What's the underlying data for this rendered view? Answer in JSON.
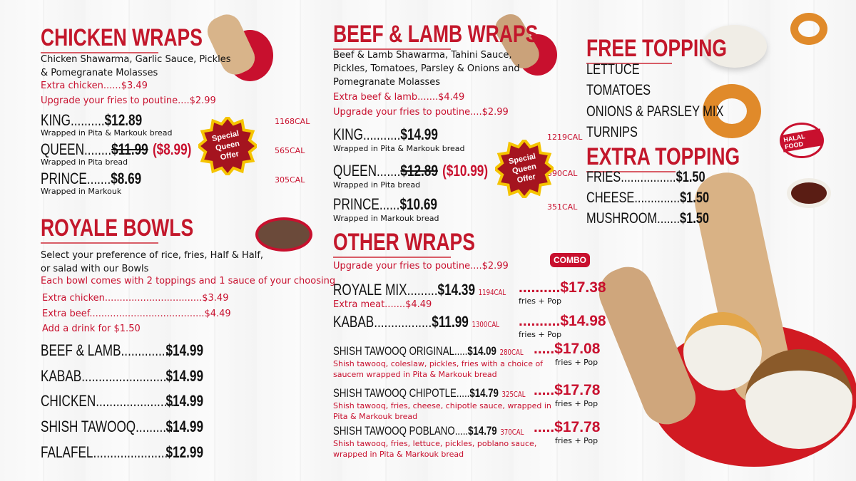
{
  "colors": {
    "accent": "#c3172b",
    "text": "#111111",
    "badge": "#a5141f",
    "badge_border": "#f5c400"
  },
  "chicken": {
    "title": "CHICKEN WRAPS",
    "desc": [
      "Chicken Shawarma, Garlic Sauce, Pickles",
      "& Pomegranate Molasses"
    ],
    "extra": "Extra chicken......$3.49",
    "upgrade": "Upgrade your fries to poutine....$2.99",
    "items": [
      {
        "name": "KING..........",
        "price": "$12.89",
        "sub": "Wrapped in Pita & Markouk bread",
        "cal": "1168CAL"
      },
      {
        "name": "QUEEN........",
        "price": "$11.99",
        "sale": "($8.99)",
        "sub": "Wrapped in Pita bread",
        "cal": "565CAL"
      },
      {
        "name": "PRINCE.......",
        "price": "$8.69",
        "sub": "Wrapped in Markouk",
        "cal": "305CAL"
      }
    ],
    "badge": "Special Queen Offer"
  },
  "bowls": {
    "title": "ROYALE BOWLS",
    "desc": [
      "Select your preference of rice, fries, Half & Half,",
      "or salad with our Bowls"
    ],
    "note": "Each bowl comes with 2 toppings and 1 sauce of your choosing",
    "extras": [
      "Extra chicken.................................$3.49",
      "Extra beef.......................................$4.49",
      "Add a drink for $1.50"
    ],
    "items": [
      {
        "name": "BEEF & LAMB...............",
        "price": "$14.99"
      },
      {
        "name": "KABAB.........................",
        "price": "$14.99"
      },
      {
        "name": "CHICKEN.......................",
        "price": "$14.99"
      },
      {
        "name": "SHISH TAWOOQ............",
        "price": "$14.99"
      },
      {
        "name": "FALAFEL.......................",
        "price": "$12.99"
      }
    ]
  },
  "beef": {
    "title": "BEEF & LAMB WRAPS",
    "desc": [
      "Beef & Lamb Shawarma, Tahini Sauce,",
      "Pickles, Tomatoes, Parsley & Onions and",
      "Pomegranate Molasses"
    ],
    "extra": "Extra beef & lamb.......$4.49",
    "upgrade": "Upgrade your fries to poutine....$2.99",
    "items": [
      {
        "name": "KING...........",
        "price": "$14.99",
        "sub": "Wrapped in Pita & Markouk bread",
        "cal": "1219CAL"
      },
      {
        "name": "QUEEN.......",
        "price": "$12.89",
        "sale": "($10.99)",
        "sub": "Wrapped in Pita bread",
        "cal": "590CAL"
      },
      {
        "name": "PRINCE......",
        "price": "$10.69",
        "sub": "Wrapped in Markouk bread",
        "cal": "351CAL"
      }
    ],
    "badge": "Special Queen Offer"
  },
  "other": {
    "title": "OTHER WRAPS",
    "upgrade": "Upgrade your fries to poutine....$2.99",
    "combo_label": "COMBO",
    "items": [
      {
        "name": "ROYALE MIX.........",
        "price": "$14.39",
        "cal": "1194CAL",
        "note": "Extra meat.......$4.49",
        "combo": "..........$17.38",
        "combo_sub": "fries + Pop"
      },
      {
        "name": "KABAB.................",
        "price": "$11.99",
        "cal": "1300CAL",
        "combo": "..........$14.98",
        "combo_sub": "fries + Pop"
      },
      {
        "name": "SHISH TAWOOQ ORIGINAL.....",
        "price": "$14.09",
        "cal": "280CAL",
        "desc": [
          "Shish tawooq, coleslaw, pickles, fries with a choice of",
          "saucem wrapped in Pita & Markouk bread"
        ],
        "combo": ".....$17.08",
        "combo_sub": "fries + Pop"
      },
      {
        "name": "SHISH TAWOOQ CHIPOTLE.....",
        "price": "$14.79",
        "cal": "325CAL",
        "desc": [
          "Shish tawooq, fries, cheese, chipotle sauce, wrapped in",
          "Pita & Markouk bread"
        ],
        "combo": ".....$17.78",
        "combo_sub": "fries + Pop"
      },
      {
        "name": "SHISH TAWOOQ POBLANO.....",
        "price": "$14.79",
        "cal": "370CAL",
        "desc": [
          "Shish tawooq, fries, lettuce, pickles, poblano sauce,",
          "wrapped in Pita & Markouk bread"
        ],
        "combo": ".....$17.78",
        "combo_sub": "fries + Pop"
      }
    ]
  },
  "free": {
    "title": "FREE TOPPING",
    "items": [
      "LETTUCE",
      "TOMATOES",
      "ONIONS & PARSLEY MIX",
      "TURNIPS"
    ]
  },
  "extra": {
    "title": "EXTRA TOPPING",
    "items": [
      {
        "name": "FRIES.................",
        "price": "$1.50"
      },
      {
        "name": "CHEESE..............",
        "price": "$1.50"
      },
      {
        "name": "MUSHROOM.......",
        "price": "$1.50"
      }
    ]
  },
  "stamp": "HALAL FOOD"
}
